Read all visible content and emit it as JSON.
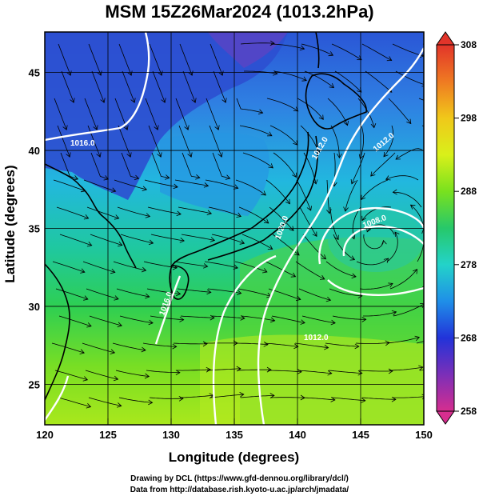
{
  "title": "MSM 15Z26Mar2024 (1013.2hPa)",
  "axes": {
    "xlabel": "Longitude (degrees)",
    "ylabel": "Latitude (degrees)",
    "xticks": [
      "120",
      "125",
      "130",
      "135",
      "140",
      "145",
      "150"
    ],
    "yticks": [
      "25",
      "30",
      "35",
      "40",
      "45"
    ],
    "xlim": [
      120,
      150
    ],
    "ylim": [
      22.4,
      47.6
    ]
  },
  "colorbar": {
    "range": [
      258,
      308
    ],
    "tick_labels": [
      "308",
      "298",
      "288",
      "278",
      "268",
      "258"
    ],
    "colors": [
      "#d62e8f",
      "#7b2fb8",
      "#2233d9",
      "#1f8fe8",
      "#23d3c9",
      "#27c86a",
      "#79e11e",
      "#d9f01a",
      "#f0c81a",
      "#ef7a22",
      "#e2342a"
    ]
  },
  "contour_labels": [
    "1016.0",
    "1012.0",
    "1008.0",
    "1012.0",
    "1016.0",
    "1020.0",
    "1012.0"
  ],
  "credits": {
    "line1": "Drawing by DCL (https://www.gfd-dennou.org/library/dcl/)",
    "line2": "Data from http://database.rish.kyoto-u.ac.jp/arch/jmadata/"
  }
}
